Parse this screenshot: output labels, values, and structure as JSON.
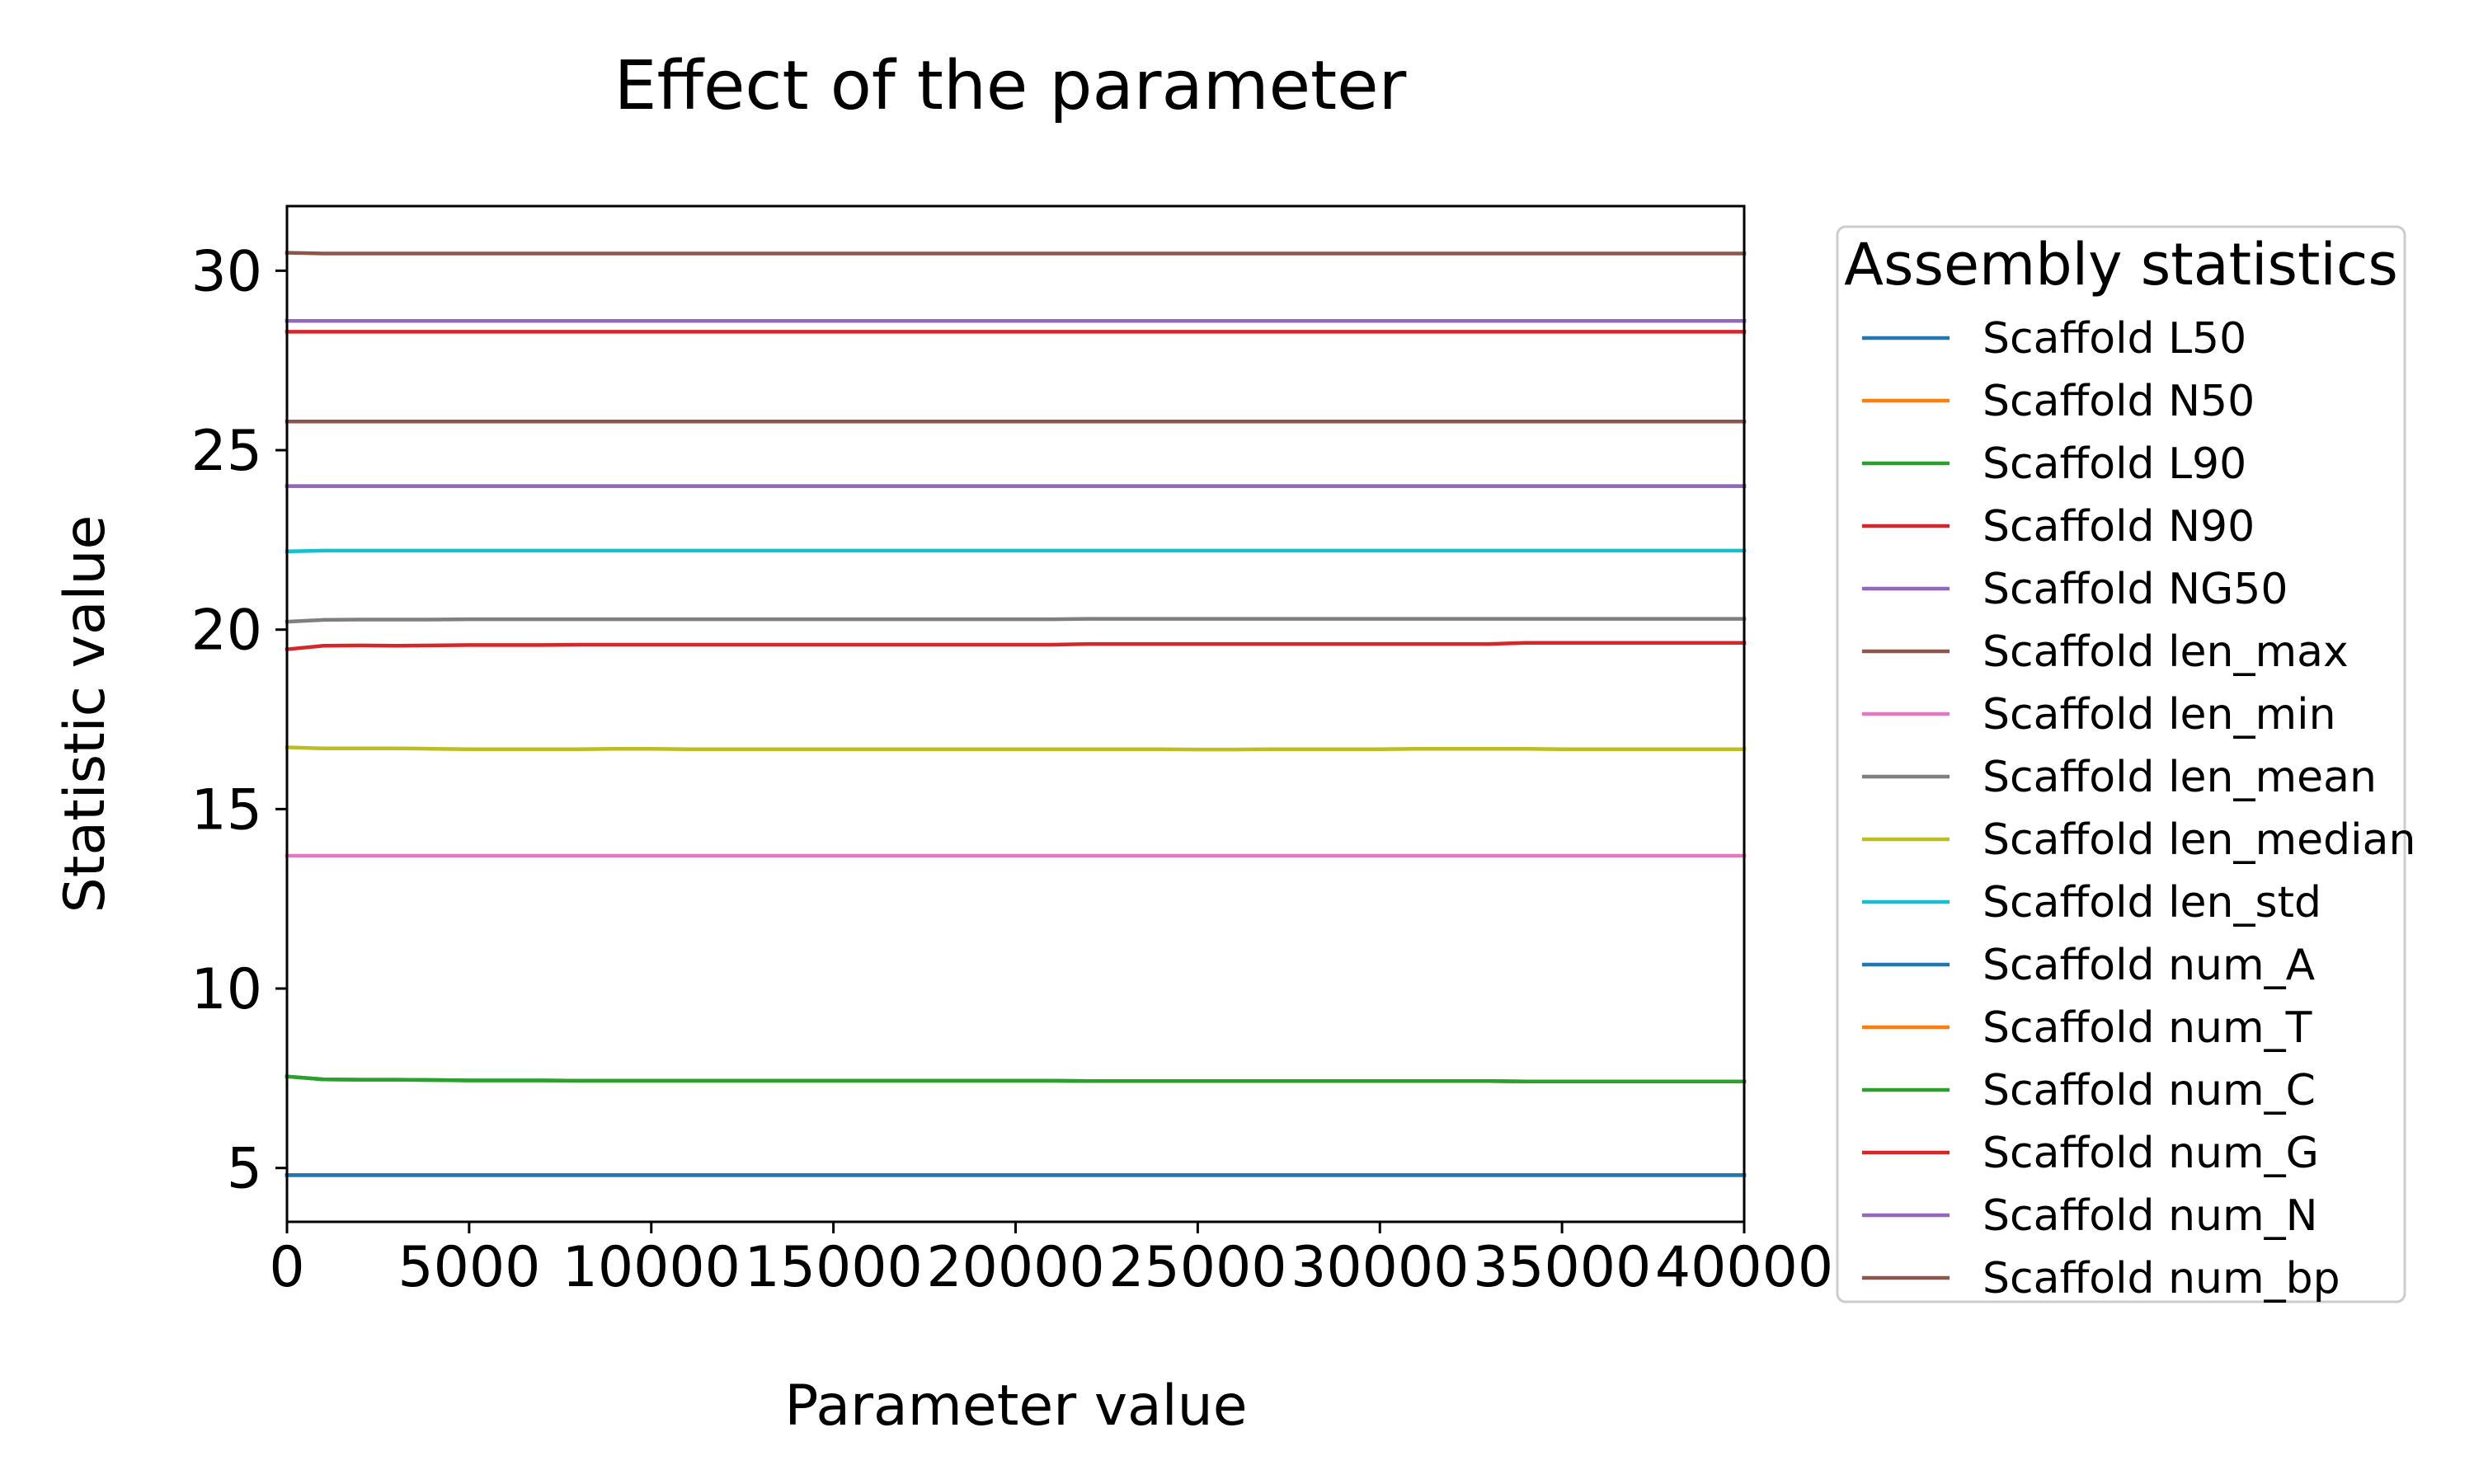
{
  "chart_data": {
    "type": "line",
    "title": "Effect of the parameter",
    "xlabel": "Parameter value",
    "ylabel": "Statistic value",
    "xlim": [
      0,
      40000
    ],
    "ylim": [
      3.5,
      31.8
    ],
    "xticks": [
      0,
      5000,
      10000,
      15000,
      20000,
      25000,
      30000,
      35000,
      40000
    ],
    "yticks": [
      5,
      10,
      15,
      20,
      25,
      30
    ],
    "grid": false,
    "legend": {
      "title": "Assembly statistics",
      "placement": "outside-right"
    },
    "x": [
      0,
      1000,
      2000,
      3000,
      4000,
      5000,
      6000,
      7000,
      8000,
      9000,
      10000,
      11000,
      12000,
      13000,
      14000,
      15000,
      16000,
      17000,
      18000,
      19000,
      20000,
      21000,
      22000,
      23000,
      24000,
      25000,
      26000,
      27000,
      28000,
      29000,
      30000,
      31000,
      32000,
      33000,
      34000,
      35000,
      36000,
      37000,
      38000,
      39000,
      40000
    ],
    "series": [
      {
        "name": "Scaffold L50",
        "color": "#1f77b4",
        "values": [
          4.8,
          4.8,
          4.8,
          4.8,
          4.8,
          4.8,
          4.8,
          4.8,
          4.8,
          4.8,
          4.8,
          4.8,
          4.8,
          4.8,
          4.8,
          4.8,
          4.8,
          4.8,
          4.8,
          4.8,
          4.8,
          4.8,
          4.8,
          4.8,
          4.8,
          4.8,
          4.8,
          4.8,
          4.8,
          4.8,
          4.8,
          4.8,
          4.8,
          4.8,
          4.8,
          4.8,
          4.8,
          4.8,
          4.8,
          4.8,
          4.8
        ]
      },
      {
        "name": "Scaffold N50",
        "color": "#ff7f0e",
        "values": [
          24.0,
          24.0,
          24.0,
          24.0,
          24.0,
          24.0,
          24.0,
          24.0,
          24.0,
          24.0,
          24.0,
          24.0,
          24.0,
          24.0,
          24.0,
          24.0,
          24.0,
          24.0,
          24.0,
          24.0,
          24.0,
          24.0,
          24.0,
          24.0,
          24.0,
          24.0,
          24.0,
          24.0,
          24.0,
          24.0,
          24.0,
          24.0,
          24.0,
          24.0,
          24.0,
          24.0,
          24.0,
          24.0,
          24.0,
          24.0,
          24.0
        ]
      },
      {
        "name": "Scaffold L90",
        "color": "#2ca02c",
        "values": [
          7.55,
          7.47,
          7.46,
          7.46,
          7.45,
          7.44,
          7.44,
          7.44,
          7.43,
          7.43,
          7.43,
          7.43,
          7.43,
          7.43,
          7.43,
          7.43,
          7.43,
          7.43,
          7.43,
          7.43,
          7.43,
          7.43,
          7.42,
          7.42,
          7.42,
          7.42,
          7.42,
          7.42,
          7.42,
          7.42,
          7.42,
          7.42,
          7.42,
          7.42,
          7.41,
          7.41,
          7.41,
          7.41,
          7.41,
          7.41,
          7.41
        ]
      },
      {
        "name": "Scaffold N90",
        "color": "#d62728",
        "values": [
          28.3,
          28.3,
          28.3,
          28.3,
          28.3,
          28.3,
          28.3,
          28.3,
          28.3,
          28.3,
          28.3,
          28.3,
          28.3,
          28.3,
          28.3,
          28.3,
          28.3,
          28.3,
          28.3,
          28.3,
          28.3,
          28.3,
          28.3,
          28.3,
          28.3,
          28.3,
          28.3,
          28.3,
          28.3,
          28.3,
          28.3,
          28.3,
          28.3,
          28.3,
          28.3,
          28.3,
          28.3,
          28.3,
          28.3,
          28.3,
          28.3
        ]
      },
      {
        "name": "Scaffold NG50",
        "color": "#9467bd",
        "values": [
          24.0,
          24.0,
          24.0,
          24.0,
          24.0,
          24.0,
          24.0,
          24.0,
          24.0,
          24.0,
          24.0,
          24.0,
          24.0,
          24.0,
          24.0,
          24.0,
          24.0,
          24.0,
          24.0,
          24.0,
          24.0,
          24.0,
          24.0,
          24.0,
          24.0,
          24.0,
          24.0,
          24.0,
          24.0,
          24.0,
          24.0,
          24.0,
          24.0,
          24.0,
          24.0,
          24.0,
          24.0,
          24.0,
          24.0,
          24.0,
          24.0
        ]
      },
      {
        "name": "Scaffold len_max",
        "color": "#8c564b",
        "values": [
          25.8,
          25.8,
          25.8,
          25.8,
          25.8,
          25.8,
          25.8,
          25.8,
          25.8,
          25.8,
          25.8,
          25.8,
          25.8,
          25.8,
          25.8,
          25.8,
          25.8,
          25.8,
          25.8,
          25.8,
          25.8,
          25.8,
          25.8,
          25.8,
          25.8,
          25.8,
          25.8,
          25.8,
          25.8,
          25.8,
          25.8,
          25.8,
          25.8,
          25.8,
          25.8,
          25.8,
          25.8,
          25.8,
          25.8,
          25.8,
          25.8
        ]
      },
      {
        "name": "Scaffold len_min",
        "color": "#e377c2",
        "values": [
          13.7,
          13.7,
          13.7,
          13.7,
          13.7,
          13.7,
          13.7,
          13.7,
          13.7,
          13.7,
          13.7,
          13.7,
          13.7,
          13.7,
          13.7,
          13.7,
          13.7,
          13.7,
          13.7,
          13.7,
          13.7,
          13.7,
          13.7,
          13.7,
          13.7,
          13.7,
          13.7,
          13.7,
          13.7,
          13.7,
          13.7,
          13.7,
          13.7,
          13.7,
          13.7,
          13.7,
          13.7,
          13.7,
          13.7,
          13.7,
          13.7
        ]
      },
      {
        "name": "Scaffold len_mean",
        "color": "#7f7f7f",
        "values": [
          20.22,
          20.27,
          20.28,
          20.28,
          20.28,
          20.29,
          20.29,
          20.29,
          20.29,
          20.29,
          20.29,
          20.29,
          20.29,
          20.29,
          20.29,
          20.29,
          20.29,
          20.29,
          20.29,
          20.29,
          20.29,
          20.29,
          20.3,
          20.3,
          20.3,
          20.3,
          20.3,
          20.3,
          20.3,
          20.3,
          20.3,
          20.3,
          20.3,
          20.3,
          20.3,
          20.3,
          20.3,
          20.3,
          20.3,
          20.3,
          20.3
        ]
      },
      {
        "name": "Scaffold len_median",
        "color": "#bcbd22",
        "values": [
          16.72,
          16.69,
          16.69,
          16.69,
          16.68,
          16.67,
          16.67,
          16.67,
          16.67,
          16.68,
          16.68,
          16.67,
          16.67,
          16.67,
          16.67,
          16.67,
          16.67,
          16.67,
          16.67,
          16.67,
          16.67,
          16.67,
          16.67,
          16.67,
          16.67,
          16.66,
          16.66,
          16.67,
          16.67,
          16.67,
          16.67,
          16.68,
          16.68,
          16.68,
          16.68,
          16.67,
          16.67,
          16.67,
          16.67,
          16.67,
          16.67
        ]
      },
      {
        "name": "Scaffold len_std",
        "color": "#17becf",
        "values": [
          22.18,
          22.2,
          22.2,
          22.2,
          22.2,
          22.2,
          22.2,
          22.2,
          22.2,
          22.2,
          22.2,
          22.2,
          22.2,
          22.2,
          22.2,
          22.2,
          22.2,
          22.2,
          22.2,
          22.2,
          22.2,
          22.2,
          22.2,
          22.2,
          22.2,
          22.2,
          22.2,
          22.2,
          22.2,
          22.2,
          22.2,
          22.2,
          22.2,
          22.2,
          22.2,
          22.2,
          22.2,
          22.2,
          22.2,
          22.2,
          22.2
        ]
      },
      {
        "name": "Scaffold num_A",
        "color": "#1f77b4",
        "values": [
          4.8,
          4.8,
          4.8,
          4.8,
          4.8,
          4.8,
          4.8,
          4.8,
          4.8,
          4.8,
          4.8,
          4.8,
          4.8,
          4.8,
          4.8,
          4.8,
          4.8,
          4.8,
          4.8,
          4.8,
          4.8,
          4.8,
          4.8,
          4.8,
          4.8,
          4.8,
          4.8,
          4.8,
          4.8,
          4.8,
          4.8,
          4.8,
          4.8,
          4.8,
          4.8,
          4.8,
          4.8,
          4.8,
          4.8,
          4.8,
          4.8
        ]
      },
      {
        "name": "Scaffold num_T",
        "color": "#ff7f0e",
        "values": [
          28.6,
          28.6,
          28.6,
          28.6,
          28.6,
          28.6,
          28.6,
          28.6,
          28.6,
          28.6,
          28.6,
          28.6,
          28.6,
          28.6,
          28.6,
          28.6,
          28.6,
          28.6,
          28.6,
          28.6,
          28.6,
          28.6,
          28.6,
          28.6,
          28.6,
          28.6,
          28.6,
          28.6,
          28.6,
          28.6,
          28.6,
          28.6,
          28.6,
          28.6,
          28.6,
          28.6,
          28.6,
          28.6,
          28.6,
          28.6,
          28.6
        ]
      },
      {
        "name": "Scaffold num_C",
        "color": "#2ca02c",
        "values": [
          7.55,
          7.47,
          7.46,
          7.46,
          7.45,
          7.44,
          7.44,
          7.44,
          7.43,
          7.43,
          7.43,
          7.43,
          7.43,
          7.43,
          7.43,
          7.43,
          7.43,
          7.43,
          7.43,
          7.43,
          7.43,
          7.43,
          7.42,
          7.42,
          7.42,
          7.42,
          7.42,
          7.42,
          7.42,
          7.42,
          7.42,
          7.42,
          7.42,
          7.42,
          7.41,
          7.41,
          7.41,
          7.41,
          7.41,
          7.41,
          7.41
        ]
      },
      {
        "name": "Scaffold num_G",
        "color": "#d62728",
        "values": [
          19.45,
          19.55,
          19.56,
          19.55,
          19.56,
          19.57,
          19.57,
          19.57,
          19.58,
          19.58,
          19.58,
          19.58,
          19.58,
          19.58,
          19.58,
          19.58,
          19.58,
          19.58,
          19.58,
          19.58,
          19.58,
          19.58,
          19.6,
          19.6,
          19.6,
          19.6,
          19.6,
          19.6,
          19.6,
          19.6,
          19.6,
          19.6,
          19.6,
          19.6,
          19.63,
          19.63,
          19.63,
          19.63,
          19.63,
          19.63,
          19.63
        ]
      },
      {
        "name": "Scaffold num_N",
        "color": "#9467bd",
        "values": [
          28.6,
          28.6,
          28.6,
          28.6,
          28.6,
          28.6,
          28.6,
          28.6,
          28.6,
          28.6,
          28.6,
          28.6,
          28.6,
          28.6,
          28.6,
          28.6,
          28.6,
          28.6,
          28.6,
          28.6,
          28.6,
          28.6,
          28.6,
          28.6,
          28.6,
          28.6,
          28.6,
          28.6,
          28.6,
          28.6,
          28.6,
          28.6,
          28.6,
          28.6,
          28.6,
          28.6,
          28.6,
          28.6,
          28.6,
          28.6,
          28.6
        ]
      },
      {
        "name": "Scaffold num_bp",
        "color": "#8c564b",
        "values": [
          30.5,
          30.48,
          30.48,
          30.48,
          30.48,
          30.48,
          30.48,
          30.48,
          30.48,
          30.48,
          30.48,
          30.48,
          30.48,
          30.48,
          30.48,
          30.48,
          30.48,
          30.48,
          30.48,
          30.48,
          30.48,
          30.48,
          30.48,
          30.48,
          30.48,
          30.48,
          30.48,
          30.48,
          30.48,
          30.48,
          30.48,
          30.48,
          30.48,
          30.48,
          30.48,
          30.48,
          30.48,
          30.48,
          30.48,
          30.48,
          30.48
        ]
      }
    ]
  }
}
